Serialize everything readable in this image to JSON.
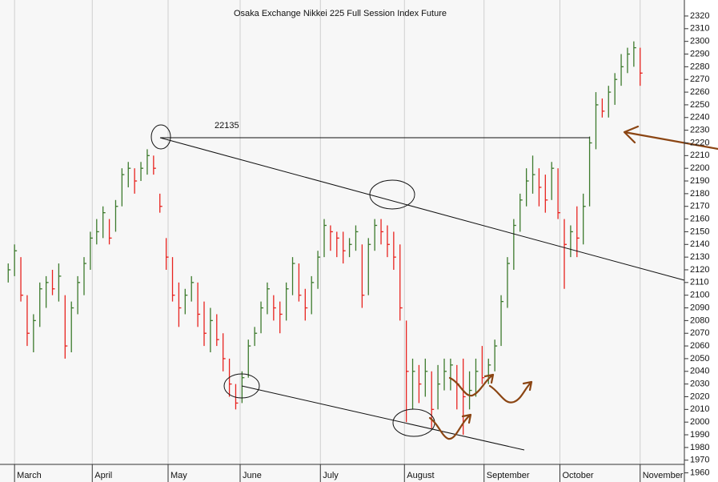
{
  "chart_data": {
    "type": "ohlc",
    "title": "Osaka Exchange Nikkei 225 Full Session Index Future",
    "annotations": [
      "22135"
    ],
    "up_color": "#3c7a2c",
    "down_color": "#e8231f",
    "high": [
      2125,
      2140,
      2130,
      2100,
      2085,
      2110,
      2115,
      2120,
      2125,
      2100,
      2095,
      2115,
      2130,
      2150,
      2160,
      2170,
      2160,
      2175,
      2200,
      2205,
      2200,
      2205,
      2215,
      2210,
      2180,
      2145,
      2130,
      2110,
      2105,
      2115,
      2110,
      2095,
      2090,
      2085,
      2070,
      2050,
      2030,
      2040,
      2065,
      2075,
      2095,
      2110,
      2100,
      2095,
      2110,
      2130,
      2125,
      2105,
      2115,
      2135,
      2160,
      2155,
      2150,
      2150,
      2145,
      2155,
      2140,
      2145,
      2160,
      2160,
      2155,
      2150,
      2140,
      2080,
      2050,
      2045,
      2050,
      2040,
      2045,
      2050,
      2050,
      2045,
      2050,
      2040,
      2050,
      2060,
      2050,
      2065,
      2100,
      2130,
      2160,
      2180,
      2200,
      2210,
      2200,
      2195,
      2205,
      2200,
      2160,
      2155,
      2170,
      2180,
      2225,
      2260,
      2255,
      2265,
      2275,
      2290,
      2295,
      2300,
      2295
    ],
    "low": [
      2110,
      2115,
      2095,
      2060,
      2055,
      2075,
      2090,
      2100,
      2095,
      2050,
      2055,
      2085,
      2100,
      2120,
      2140,
      2145,
      2140,
      2150,
      2170,
      2185,
      2180,
      2190,
      2195,
      2195,
      2165,
      2120,
      2095,
      2075,
      2085,
      2095,
      2075,
      2060,
      2055,
      2060,
      2040,
      2020,
      2010,
      2015,
      2035,
      2060,
      2070,
      2085,
      2080,
      2070,
      2080,
      2100,
      2095,
      2080,
      2085,
      2105,
      2130,
      2135,
      2130,
      2125,
      2130,
      2135,
      2090,
      2100,
      2135,
      2140,
      2130,
      2120,
      2080,
      2000,
      2010,
      2015,
      2020,
      1995,
      2010,
      2025,
      2025,
      2010,
      1990,
      2010,
      2020,
      2030,
      2030,
      2040,
      2060,
      2090,
      2120,
      2150,
      2170,
      2180,
      2170,
      2165,
      2175,
      2160,
      2105,
      2130,
      2130,
      2140,
      2170,
      2215,
      2240,
      2240,
      2250,
      2265,
      2275,
      2280,
      2265
    ],
    "close": [
      2120,
      2135,
      2100,
      2070,
      2080,
      2105,
      2110,
      2105,
      2115,
      2060,
      2090,
      2110,
      2125,
      2145,
      2150,
      2165,
      2145,
      2170,
      2195,
      2200,
      2190,
      2200,
      2210,
      2200,
      2170,
      2130,
      2100,
      2090,
      2100,
      2110,
      2085,
      2070,
      2080,
      2065,
      2050,
      2030,
      2015,
      2035,
      2060,
      2070,
      2090,
      2105,
      2090,
      2085,
      2105,
      2125,
      2100,
      2090,
      2110,
      2130,
      2155,
      2150,
      2145,
      2135,
      2140,
      2150,
      2100,
      2140,
      2155,
      2150,
      2140,
      2130,
      2090,
      2040,
      2040,
      2030,
      2040,
      2010,
      2030,
      2040,
      2045,
      2030,
      2020,
      2025,
      2040,
      2035,
      2045,
      2060,
      2095,
      2125,
      2155,
      2175,
      2190,
      2195,
      2185,
      2175,
      2200,
      2165,
      2140,
      2150,
      2145,
      2170,
      2220,
      2250,
      2245,
      2260,
      2270,
      2280,
      2290,
      2295,
      2275
    ],
    "xlim": [
      -1.3,
      107
    ],
    "xticks": [
      {
        "value": 1,
        "label": "March"
      },
      {
        "value": 13.3,
        "label": "April"
      },
      {
        "value": 25.3,
        "label": "May"
      },
      {
        "value": 36.7,
        "label": "June"
      },
      {
        "value": 49.4,
        "label": "July"
      },
      {
        "value": 62.7,
        "label": "August"
      },
      {
        "value": 75.3,
        "label": "September"
      },
      {
        "value": 87.3,
        "label": "October"
      },
      {
        "value": 100,
        "label": "November"
      }
    ],
    "ylim": [
      1952.8,
      2332.6
    ],
    "yticks": [
      1960,
      1970,
      1980,
      1990,
      2000,
      2010,
      2020,
      2030,
      2040,
      2050,
      2060,
      2070,
      2080,
      2090,
      2100,
      2110,
      2120,
      2130,
      2140,
      2150,
      2160,
      2170,
      2180,
      2190,
      2200,
      2210,
      2220,
      2230,
      2240,
      2250,
      2260,
      2270,
      2280,
      2290,
      2300,
      2310,
      2320
    ],
    "grid": true
  }
}
